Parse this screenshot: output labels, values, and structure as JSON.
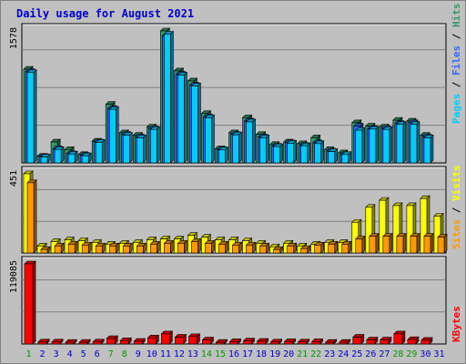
{
  "title": "Daily usage for August 2021",
  "colors": {
    "hits": "#339966",
    "files": "#3366ff",
    "pages": "#00ccff",
    "visits": "#ffff00",
    "sites": "#ff9900",
    "kbytes": "#ff0000",
    "weekend_label": "#009900",
    "weekday_label": "#0000cc",
    "title": "#0000cc"
  },
  "chart_data": [
    {
      "type": "bar",
      "name": "hits-files-pages",
      "ymax_label": "1578",
      "ymax": 1578,
      "legend": {
        "pages": "Pages",
        "files": "Files",
        "hits": "Hits",
        "sep": " / "
      },
      "series": [
        {
          "name": "Hits",
          "values": [
            1120,
            80,
            250,
            160,
            100,
            260,
            700,
            360,
            330,
            430,
            1578,
            1100,
            980,
            590,
            170,
            360,
            540,
            340,
            220,
            250,
            230,
            300,
            160,
            120,
            480,
            440,
            430,
            510,
            500,
            330,
            0
          ]
        },
        {
          "name": "Files",
          "values": [
            1090,
            75,
            170,
            110,
            90,
            250,
            650,
            340,
            310,
            410,
            1520,
            1060,
            930,
            550,
            160,
            340,
            500,
            310,
            200,
            240,
            210,
            240,
            140,
            100,
            440,
            410,
            410,
            470,
            480,
            310,
            0
          ]
        },
        {
          "name": "Pages",
          "values": [
            1080,
            70,
            160,
            105,
            85,
            245,
            640,
            330,
            300,
            400,
            1540,
            1050,
            920,
            540,
            155,
            335,
            490,
            300,
            195,
            235,
            205,
            230,
            135,
            100,
            390,
            405,
            400,
            460,
            460,
            300,
            0
          ]
        }
      ]
    },
    {
      "type": "bar",
      "name": "visits-sites",
      "ymax_label": "451",
      "ymax": 451,
      "legend": {
        "sites": "Sites",
        "visits": "Visits",
        "sep": " / "
      },
      "series": [
        {
          "name": "Visits",
          "values": [
            451,
            40,
            65,
            75,
            70,
            60,
            50,
            55,
            60,
            75,
            80,
            80,
            100,
            90,
            75,
            75,
            70,
            55,
            35,
            55,
            40,
            50,
            60,
            60,
            175,
            260,
            300,
            270,
            270,
            310,
            210
          ]
        },
        {
          "name": "Sites",
          "values": [
            400,
            20,
            40,
            50,
            45,
            40,
            40,
            40,
            40,
            50,
            55,
            55,
            65,
            55,
            50,
            45,
            45,
            40,
            20,
            40,
            25,
            45,
            50,
            50,
            80,
            95,
            95,
            95,
            95,
            95,
            90
          ]
        }
      ]
    },
    {
      "type": "bar",
      "name": "kbytes",
      "ymax_label": "119085",
      "ymax": 119085,
      "legend": {
        "kbytes": "KBytes"
      },
      "series": [
        {
          "name": "KBytes",
          "values": [
            119085,
            3000,
            3000,
            2500,
            2500,
            3000,
            8000,
            5000,
            4000,
            9000,
            15000,
            10000,
            11000,
            6000,
            2500,
            3500,
            4500,
            4000,
            3000,
            3500,
            3000,
            3500,
            2500,
            2500,
            10000,
            6000,
            6000,
            15000,
            6500,
            5500,
            0
          ]
        }
      ]
    }
  ],
  "days": [
    "1",
    "2",
    "3",
    "4",
    "5",
    "6",
    "7",
    "8",
    "9",
    "10",
    "11",
    "12",
    "13",
    "14",
    "15",
    "16",
    "17",
    "18",
    "19",
    "20",
    "21",
    "22",
    "23",
    "24",
    "25",
    "26",
    "27",
    "28",
    "29",
    "30",
    "31"
  ],
  "weekend_days": [
    1,
    7,
    8,
    14,
    15,
    21,
    22,
    28,
    29
  ]
}
